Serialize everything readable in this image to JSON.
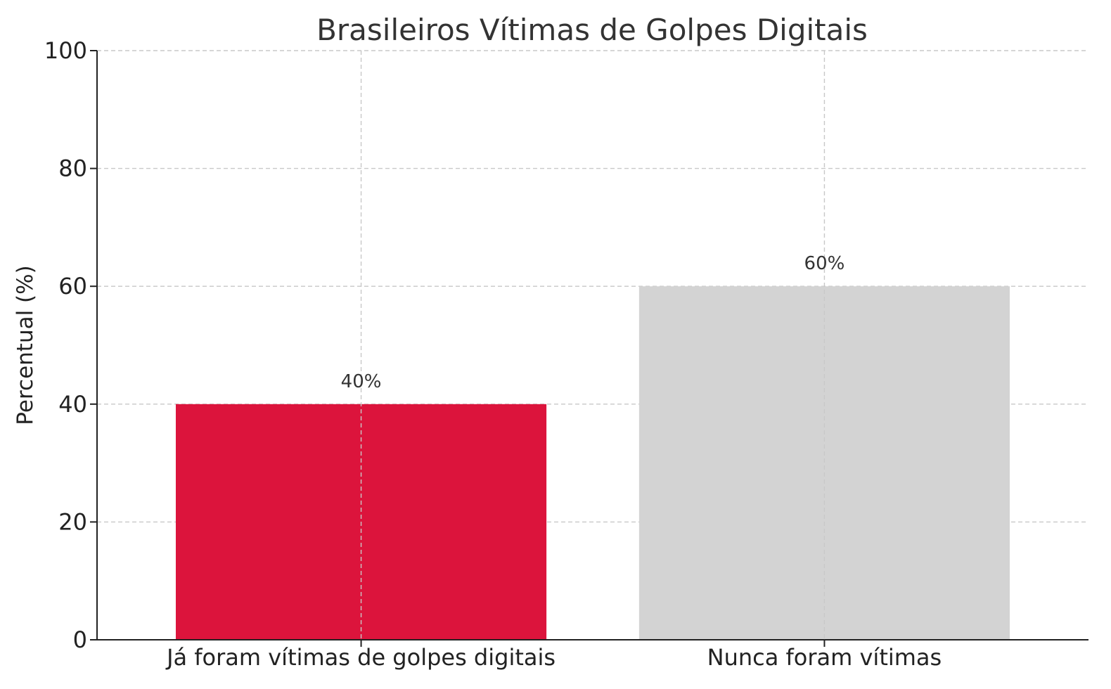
{
  "chart_data": {
    "type": "bar",
    "title": "Brasileiros Vítimas de Golpes Digitais",
    "xlabel": "",
    "ylabel": "Percentual (%)",
    "categories": [
      "Já foram vítimas de golpes digitais",
      "Nunca foram vítimas"
    ],
    "values": [
      40,
      60
    ],
    "data_labels": [
      "40%",
      "60%"
    ],
    "colors": [
      "#dc143c",
      "#d3d3d3"
    ],
    "ylim": [
      0,
      100
    ],
    "yticks": [
      0,
      20,
      40,
      60,
      80,
      100
    ],
    "grid": true,
    "legend": "none"
  }
}
